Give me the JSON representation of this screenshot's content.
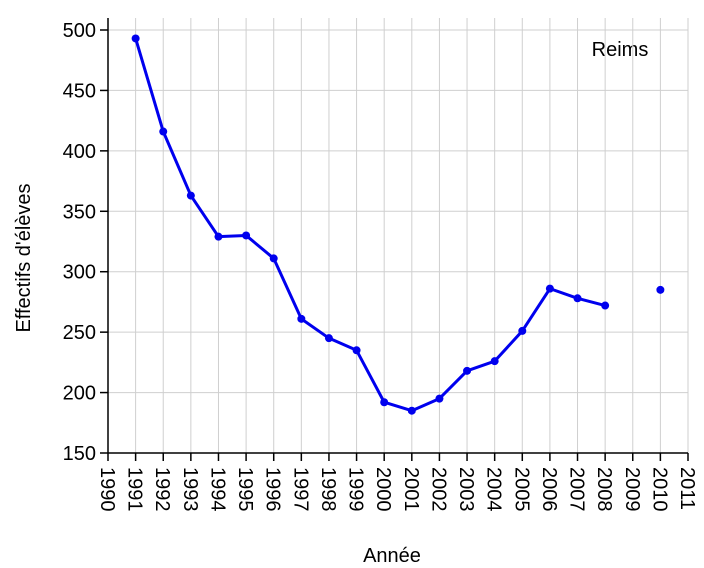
{
  "chart_data": {
    "type": "line",
    "x": [
      1991,
      1992,
      1993,
      1994,
      1995,
      1996,
      1997,
      1998,
      1999,
      2000,
      2001,
      2002,
      2003,
      2004,
      2005,
      2006,
      2007,
      2008,
      2009,
      2010
    ],
    "series": [
      {
        "name": "Reims",
        "color": "#0000ee",
        "values": [
          493,
          416,
          363,
          329,
          330,
          311,
          261,
          245,
          235,
          192,
          185,
          195,
          218,
          226,
          251,
          286,
          278,
          272,
          null,
          285
        ]
      }
    ],
    "xlabel": "Année",
    "ylabel": "Effectifs d'élèves",
    "annotation": "Reims",
    "xlim": [
      1990,
      2011
    ],
    "xticks": [
      1990,
      1991,
      1992,
      1993,
      1994,
      1995,
      1996,
      1997,
      1998,
      1999,
      2000,
      2001,
      2002,
      2003,
      2004,
      2005,
      2006,
      2007,
      2008,
      2009,
      2010,
      2011
    ],
    "ylim": [
      150,
      500
    ],
    "yticks": [
      150,
      200,
      250,
      300,
      350,
      400,
      450,
      500
    ],
    "grid": true
  }
}
